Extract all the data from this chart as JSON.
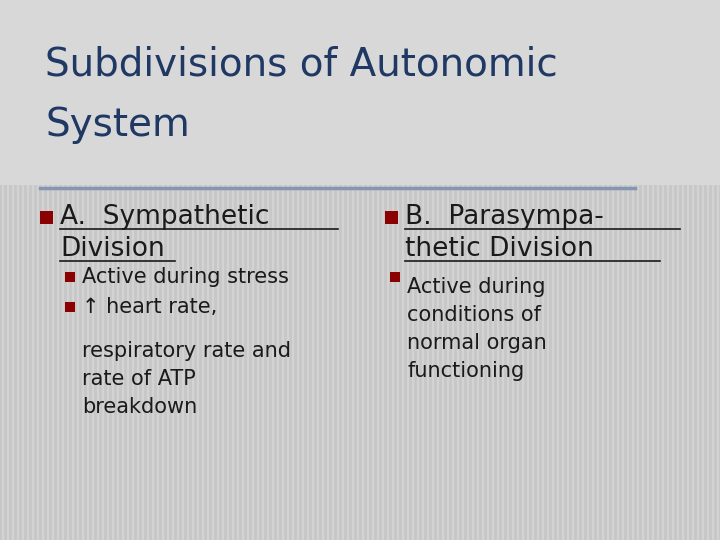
{
  "title_line1": "Subdivisions of Autonomic",
  "title_line2": "System",
  "title_color": "#1F3864",
  "title_fontsize": 28,
  "bg_color": "#D3D3D3",
  "stripe_color": "#C0C0C0",
  "divider_color": "#8496B0",
  "bullet_color": "#8B0000",
  "col1_header_line1": "A.  Sympathetic",
  "col1_header_line2": "Division",
  "col2_header_line1": "B.  Parasympa-",
  "col2_header_line2": "thetic Division",
  "header_color": "#1a1a1a",
  "header_fontsize": 19,
  "col1_sub1": "Active during stress",
  "col1_sub2_line1": "↑ heart rate,",
  "col1_sub2_rest": "respiratory rate and\nrate of ATP\nbreakdown",
  "col2_sub1": "Active during\nconditions of\nnormal organ\nfunctioning",
  "body_fontsize": 15,
  "text_color": "#1a1a1a"
}
